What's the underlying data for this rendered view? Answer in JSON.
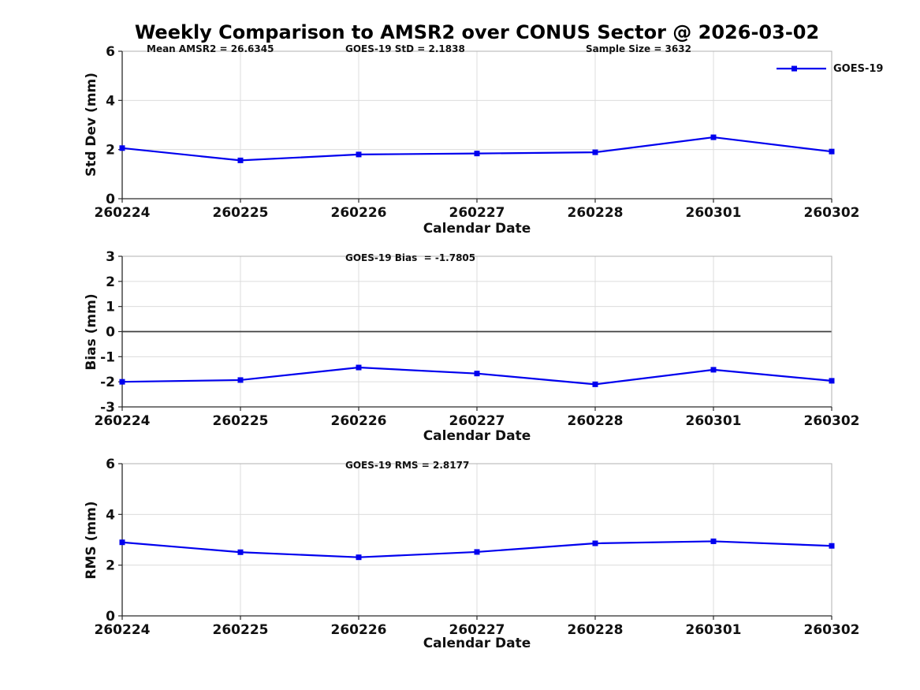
{
  "figure": {
    "title": "Weekly Comparison to AMSR2 over CONUS Sector @ 2026-03-02",
    "legend_label": "GOES-19",
    "colors": {
      "line": "#0000EE",
      "marker": "#0000EE",
      "grid": "#dcdcdc",
      "axis_dark": "#2b2b2b",
      "axis_light": "#b0b0b0",
      "zero_line": "#3f3f3f",
      "text": "#111111"
    }
  },
  "chart_data": [
    {
      "type": "line",
      "ylabel": "Std Dev (mm)",
      "xlabel": "Calendar Date",
      "ylim": [
        0,
        6
      ],
      "yticks": [
        0,
        2,
        4,
        6
      ],
      "grid": true,
      "zero_line": false,
      "legend": {
        "label": "GOES-19",
        "position": "top-right-outside",
        "marker": "square"
      },
      "annotations": [
        "Mean AMSR2 = 26.6345",
        "GOES-19 StD = 2.1838",
        "Sample Size = 3632"
      ],
      "categories": [
        "260224",
        "260225",
        "260226",
        "260227",
        "260228",
        "260301",
        "260302"
      ],
      "series": [
        {
          "name": "GOES-19",
          "values": [
            2.06,
            1.56,
            1.8,
            1.84,
            1.89,
            2.5,
            1.92
          ]
        }
      ]
    },
    {
      "type": "line",
      "ylabel": "Bias (mm)",
      "xlabel": "Calendar Date",
      "ylim": [
        -3,
        3
      ],
      "yticks": [
        -3,
        -2,
        -1,
        0,
        1,
        2,
        3
      ],
      "grid": true,
      "zero_line": true,
      "annotations": [
        "GOES-19 Bias  = -1.7805"
      ],
      "categories": [
        "260224",
        "260225",
        "260226",
        "260227",
        "260228",
        "260301",
        "260302"
      ],
      "series": [
        {
          "name": "GOES-19",
          "values": [
            -2.0,
            -1.93,
            -1.43,
            -1.67,
            -2.1,
            -1.52,
            -1.96
          ]
        }
      ]
    },
    {
      "type": "line",
      "ylabel": "RMS (mm)",
      "xlabel": "Calendar Date",
      "ylim": [
        0,
        6
      ],
      "yticks": [
        0,
        2,
        4,
        6
      ],
      "grid": true,
      "zero_line": false,
      "annotations": [
        "GOES-19 RMS = 2.8177"
      ],
      "categories": [
        "260224",
        "260225",
        "260226",
        "260227",
        "260228",
        "260301",
        "260302"
      ],
      "series": [
        {
          "name": "GOES-19",
          "values": [
            2.9,
            2.51,
            2.31,
            2.52,
            2.86,
            2.94,
            2.76
          ]
        }
      ]
    }
  ]
}
